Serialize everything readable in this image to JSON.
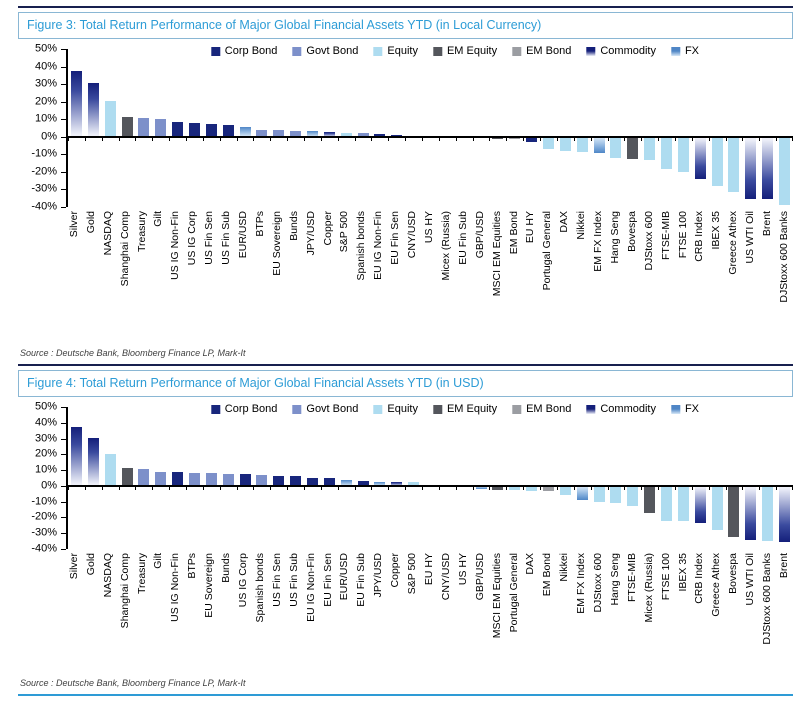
{
  "colors": {
    "Corp Bond": {
      "c1": "#18267c"
    },
    "Govt Bond": {
      "c1": "#7d90ca"
    },
    "Equity": {
      "c1": "#aedcf0"
    },
    "EM Equity": {
      "c1": "#54565c"
    },
    "EM Bond": {
      "c1": "#9b9da2"
    },
    "Commodity": {
      "c1": "#141f7a",
      "mid": "#3a4a9e",
      "c2": "#eef0f9"
    },
    "FX": {
      "c1": "#4f86c6",
      "mid": "#79a6d8",
      "c2": "#d7e8f7"
    }
  },
  "chart_data": [
    {
      "type": "bar",
      "title": "Figure 3: Total Return Performance of Major Global Financial Assets YTD (in Local Currency)",
      "source": "Source : Deutsche Bank, Bloomberg Finance LP, Mark-It",
      "xlabel": "",
      "ylabel": "",
      "ylim": [
        -40,
        50
      ],
      "yticks": [
        50,
        40,
        30,
        20,
        10,
        0,
        -10,
        -20,
        -30,
        -40
      ],
      "grid": false,
      "legend_position": "top-center",
      "legend": [
        "Corp Bond",
        "Govt Bond",
        "Equity",
        "EM Equity",
        "EM Bond",
        "Commodity",
        "FX"
      ],
      "categories": [
        "Silver",
        "Gold",
        "NASDAQ",
        "Shanghai Comp",
        "Treasury",
        "Gilt",
        "US IG Non-Fin",
        "US IG Corp",
        "US Fin Sen",
        "US Fin Sub",
        "EUR/USD",
        "BTPs",
        "EU Sovereign",
        "Bunds",
        "JPY/USD",
        "Copper",
        "S&P 500",
        "Spanish bonds",
        "EU IG Non-Fin",
        "EU Fin Sen",
        "CNY/USD",
        "US HY",
        "Micex (Russia)",
        "EU Fin Sub",
        "GBP/USD",
        "MSCI EM Equities",
        "EM Bond",
        "EU HY",
        "Portugal General",
        "DAX",
        "Nikkei",
        "EM FX Index",
        "Hang Seng",
        "Bovespa",
        "DJStoxx 600",
        "FTSE-MIB",
        "FTSE 100",
        "CRB Index",
        "IBEX 35",
        "Greece Athex",
        "US WTI Oil",
        "Brent",
        "DJStoxx 600 Banks"
      ],
      "bar_classes": [
        "Commodity",
        "Commodity",
        "Equity",
        "EM Equity",
        "Govt Bond",
        "Govt Bond",
        "Corp Bond",
        "Corp Bond",
        "Corp Bond",
        "Corp Bond",
        "FX",
        "Govt Bond",
        "Govt Bond",
        "Govt Bond",
        "FX",
        "Commodity",
        "Equity",
        "Govt Bond",
        "Corp Bond",
        "Corp Bond",
        "FX",
        "Corp Bond",
        "EM Equity",
        "Corp Bond",
        "FX",
        "EM Equity",
        "EM Bond",
        "Corp Bond",
        "Equity",
        "Equity",
        "Equity",
        "FX",
        "Equity",
        "EM Equity",
        "Equity",
        "Equity",
        "Equity",
        "Commodity",
        "Equity",
        "Equity",
        "Commodity",
        "Commodity",
        "Equity"
      ],
      "values": [
        37.3,
        30.6,
        20.4,
        11.3,
        10.8,
        10.0,
        8.4,
        7.8,
        7.0,
        6.8,
        5.3,
        3.9,
        3.7,
        3.4,
        3.2,
        2.9,
        2.4,
        2.2,
        1.4,
        1.1,
        0.6,
        0.5,
        0.3,
        -0.4,
        -0.9,
        -1.2,
        -1.5,
        -2.8,
        -6.8,
        -8.3,
        -8.8,
        -9.2,
        -12.0,
        -12.5,
        -13.4,
        -18.2,
        -20.1,
        -24.0,
        -27.8,
        -31.6,
        -35.3,
        -35.5,
        -39.0
      ]
    },
    {
      "type": "bar",
      "title": "Figure 4: Total Return Performance of Major Global Financial Assets YTD (in USD)",
      "source": "Source : Deutsche Bank, Bloomberg Finance LP, Mark-It",
      "xlabel": "",
      "ylabel": "",
      "ylim": [
        -40,
        50
      ],
      "yticks": [
        50,
        40,
        30,
        20,
        10,
        0,
        -10,
        -20,
        -30,
        -40
      ],
      "grid": false,
      "legend_position": "top-center",
      "legend": [
        "Corp Bond",
        "Govt Bond",
        "Equity",
        "EM Equity",
        "EM Bond",
        "Commodity",
        "FX"
      ],
      "categories": [
        "Silver",
        "Gold",
        "NASDAQ",
        "Shanghai Comp",
        "Treasury",
        "Gilt",
        "US IG Non-Fin",
        "BTPs",
        "EU Sovereign",
        "Bunds",
        "US IG Corp",
        "Spanish bonds",
        "US Fin Sen",
        "US Fin Sub",
        "EU IG Non-Fin",
        "EU Fin Sen",
        "EUR/USD",
        "EU Fin Sub",
        "JPY/USD",
        "Copper",
        "S&P 500",
        "EU HY",
        "CNY/USD",
        "US HY",
        "GBP/USD",
        "MSCI EM Equities",
        "Portugal General",
        "DAX",
        "EM Bond",
        "Nikkei",
        "EM FX Index",
        "DJStoxx 600",
        "Hang Seng",
        "FTSE-MIB",
        "Micex (Russia)",
        "FTSE 100",
        "IBEX 35",
        "CRB Index",
        "Greece Athex",
        "Bovespa",
        "US WTI Oil",
        "DJStoxx 600 Banks",
        "Brent"
      ],
      "bar_classes": [
        "Commodity",
        "Commodity",
        "Equity",
        "EM Equity",
        "Govt Bond",
        "Govt Bond",
        "Corp Bond",
        "Govt Bond",
        "Govt Bond",
        "Govt Bond",
        "Corp Bond",
        "Govt Bond",
        "Corp Bond",
        "Corp Bond",
        "Corp Bond",
        "Corp Bond",
        "FX",
        "Corp Bond",
        "FX",
        "Commodity",
        "Equity",
        "Corp Bond",
        "FX",
        "Corp Bond",
        "FX",
        "EM Equity",
        "Equity",
        "Equity",
        "EM Bond",
        "Equity",
        "FX",
        "Equity",
        "Equity",
        "Equity",
        "EM Equity",
        "Equity",
        "Equity",
        "Commodity",
        "Equity",
        "EM Equity",
        "Commodity",
        "Equity",
        "Commodity"
      ],
      "values": [
        37.5,
        30.5,
        20.5,
        11.2,
        10.7,
        8.9,
        8.7,
        8.2,
        8.0,
        7.7,
        7.6,
        6.6,
        6.2,
        6.0,
        5.2,
        5.0,
        3.8,
        2.9,
        2.7,
        2.5,
        2.2,
        0.8,
        0.4,
        0.2,
        -1.9,
        -2.3,
        -2.6,
        -3.0,
        -3.4,
        -5.5,
        -8.7,
        -10.0,
        -10.7,
        -12.9,
        -17.2,
        -22.0,
        -22.4,
        -23.8,
        -28.2,
        -32.5,
        -34.5,
        -34.8,
        -35.3
      ]
    }
  ]
}
